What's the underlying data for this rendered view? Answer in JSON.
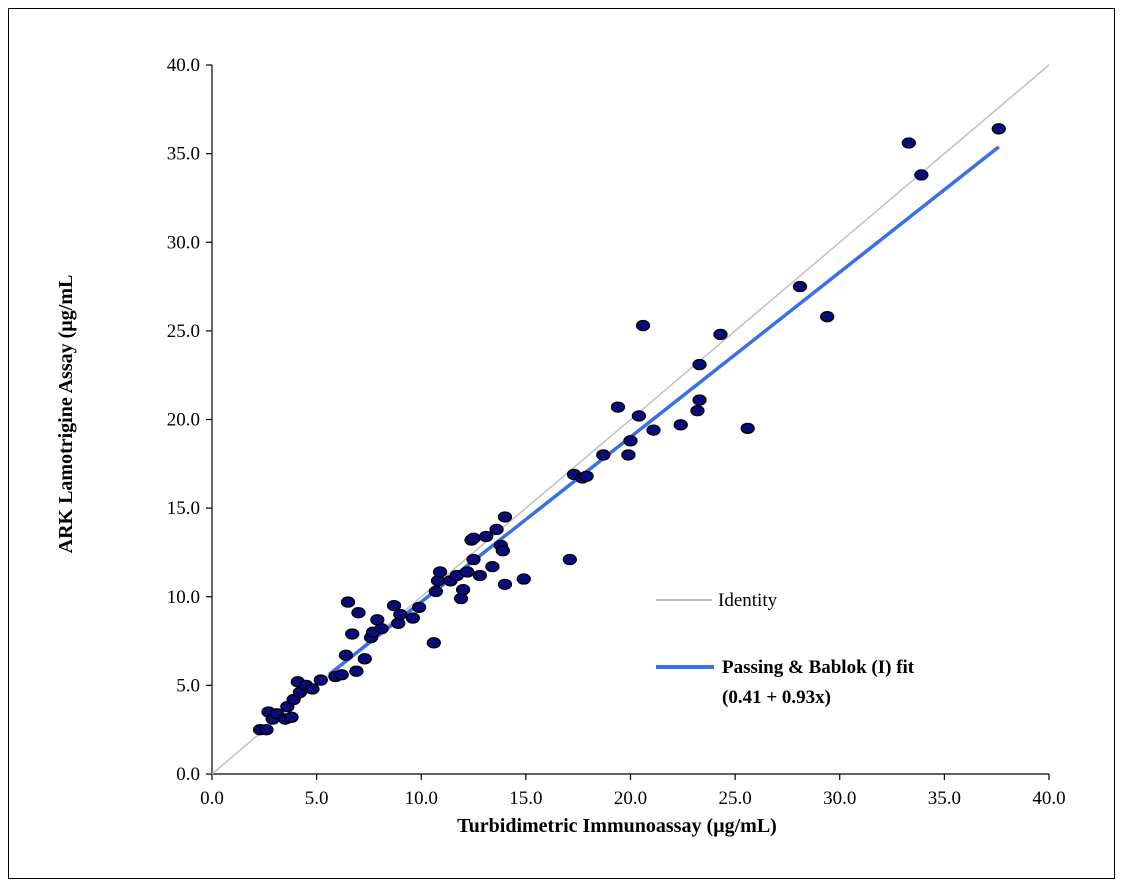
{
  "chart_data": {
    "type": "scatter",
    "xlabel": "Turbidimetric Immunoassay (µg/mL)",
    "ylabel": "ARK Lamotrigine Assay (µg/mL",
    "xlim": [
      0,
      40
    ],
    "ylim": [
      0,
      40
    ],
    "x_ticks": [
      "0.0",
      "5.0",
      "10.0",
      "15.0",
      "20.0",
      "25.0",
      "30.0",
      "35.0",
      "40.0"
    ],
    "y_ticks": [
      "0.0",
      "5.0",
      "10.0",
      "15.0",
      "20.0",
      "25.0",
      "30.0",
      "35.0",
      "40.0"
    ],
    "grid": false,
    "legend_position": "center-right",
    "colors": {
      "points": "#0a0a7a",
      "identity": "#c0c0c0",
      "fit": "#3a6fe8"
    },
    "series": [
      {
        "name": "",
        "points": [
          [
            2.3,
            2.5
          ],
          [
            2.6,
            2.5
          ],
          [
            2.7,
            3.5
          ],
          [
            2.9,
            3.1
          ],
          [
            3.1,
            3.4
          ],
          [
            3.5,
            3.1
          ],
          [
            3.6,
            3.8
          ],
          [
            3.8,
            3.2
          ],
          [
            3.9,
            4.2
          ],
          [
            4.1,
            5.2
          ],
          [
            4.2,
            4.6
          ],
          [
            4.5,
            5.0
          ],
          [
            4.8,
            4.8
          ],
          [
            5.2,
            5.3
          ],
          [
            5.9,
            5.5
          ],
          [
            6.2,
            5.6
          ],
          [
            6.4,
            6.7
          ],
          [
            6.5,
            9.7
          ],
          [
            6.7,
            7.9
          ],
          [
            6.9,
            5.8
          ],
          [
            7.0,
            9.1
          ],
          [
            7.3,
            6.5
          ],
          [
            7.6,
            7.7
          ],
          [
            7.7,
            8.0
          ],
          [
            7.9,
            8.7
          ],
          [
            8.1,
            8.2
          ],
          [
            8.7,
            9.5
          ],
          [
            8.9,
            8.5
          ],
          [
            9.0,
            9.0
          ],
          [
            9.6,
            8.8
          ],
          [
            9.9,
            9.4
          ],
          [
            10.6,
            7.4
          ],
          [
            10.7,
            10.3
          ],
          [
            10.8,
            10.9
          ],
          [
            10.9,
            11.4
          ],
          [
            11.4,
            10.9
          ],
          [
            11.7,
            11.2
          ],
          [
            11.9,
            9.9
          ],
          [
            12.0,
            10.4
          ],
          [
            12.2,
            11.4
          ],
          [
            12.4,
            13.2
          ],
          [
            12.5,
            12.1
          ],
          [
            12.5,
            13.3
          ],
          [
            12.8,
            11.2
          ],
          [
            13.1,
            13.4
          ],
          [
            13.4,
            11.7
          ],
          [
            13.6,
            13.8
          ],
          [
            13.8,
            12.9
          ],
          [
            13.9,
            12.6
          ],
          [
            14.0,
            14.5
          ],
          [
            14.0,
            10.7
          ],
          [
            14.9,
            11.0
          ],
          [
            17.1,
            12.1
          ],
          [
            17.3,
            16.9
          ],
          [
            17.7,
            16.7
          ],
          [
            17.9,
            16.8
          ],
          [
            18.7,
            18.0
          ],
          [
            19.4,
            20.7
          ],
          [
            19.9,
            18.0
          ],
          [
            20.0,
            18.8
          ],
          [
            20.4,
            20.2
          ],
          [
            20.6,
            25.3
          ],
          [
            21.1,
            19.4
          ],
          [
            22.4,
            19.7
          ],
          [
            23.2,
            20.5
          ],
          [
            23.3,
            21.1
          ],
          [
            23.3,
            23.1
          ],
          [
            24.3,
            24.8
          ],
          [
            25.6,
            19.5
          ],
          [
            28.1,
            27.5
          ],
          [
            29.4,
            25.8
          ],
          [
            33.3,
            35.6
          ],
          [
            33.9,
            33.8
          ],
          [
            37.6,
            36.4
          ]
        ]
      }
    ],
    "lines": [
      {
        "name": "Identity",
        "x": [
          0,
          40
        ],
        "y": [
          0,
          40
        ]
      },
      {
        "name": "Passing & Bablok (I) fit\n(0.41 + 0.93x)",
        "x": [
          5.6,
          37.6
        ],
        "y": [
          5.618,
          35.378
        ]
      }
    ],
    "legend": {
      "identity_label": "Identity",
      "fit_label_line1": "Passing & Bablok (I) fit",
      "fit_label_line2": "(0.41 + 0.93x)"
    }
  }
}
